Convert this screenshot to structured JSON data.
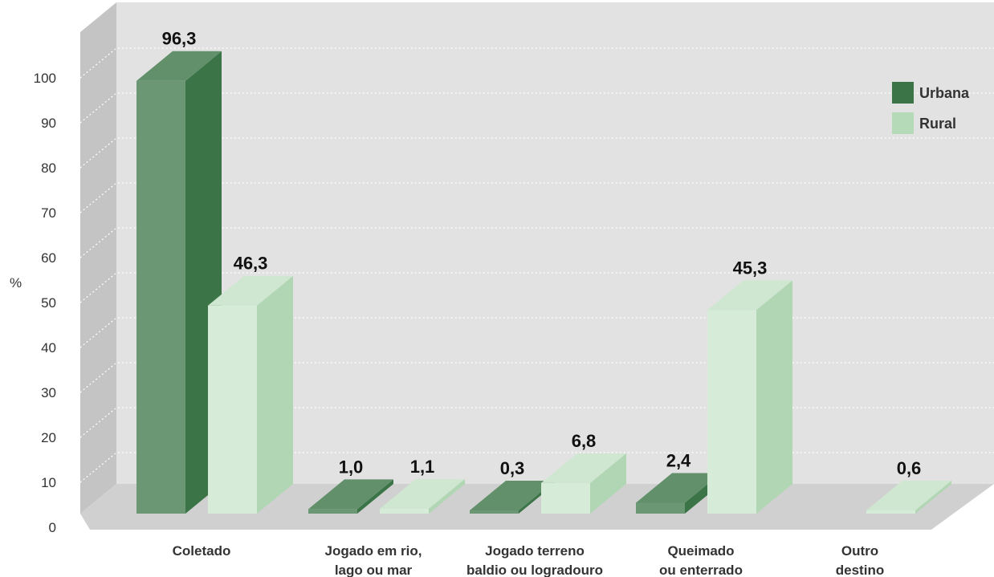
{
  "chart_data": {
    "type": "bar",
    "title": "",
    "xlabel": "",
    "ylabel": "%",
    "ylim": [
      0,
      100
    ],
    "y_ticks": [
      0,
      10,
      20,
      30,
      40,
      50,
      60,
      70,
      80,
      90,
      100
    ],
    "grid": true,
    "legend_position": "top-right",
    "categories": [
      [
        "Coletado"
      ],
      [
        "Jogado em rio,",
        "lago ou mar"
      ],
      [
        "Jogado terreno",
        "baldio ou logradouro"
      ],
      [
        "Queimado",
        "ou enterrado"
      ],
      [
        "Outro",
        "destino"
      ]
    ],
    "series": [
      {
        "name": "Urbana",
        "values": [
          96.3,
          1.0,
          0.3,
          2.4,
          null
        ],
        "labels": [
          "96,3",
          "1,0",
          "0,3",
          "2,4",
          ""
        ]
      },
      {
        "name": "Rural",
        "values": [
          46.3,
          1.1,
          6.8,
          45.3,
          0.6
        ],
        "labels": [
          "46,3",
          "1,1",
          "6,8",
          "45,3",
          "0,6"
        ]
      }
    ]
  },
  "colors": {
    "urbana": "#3b7446",
    "rural": "#b5dab8",
    "wall": "#e2e2e2",
    "side_wall": "#c4c4c4",
    "floor": "#d0d0d0"
  }
}
